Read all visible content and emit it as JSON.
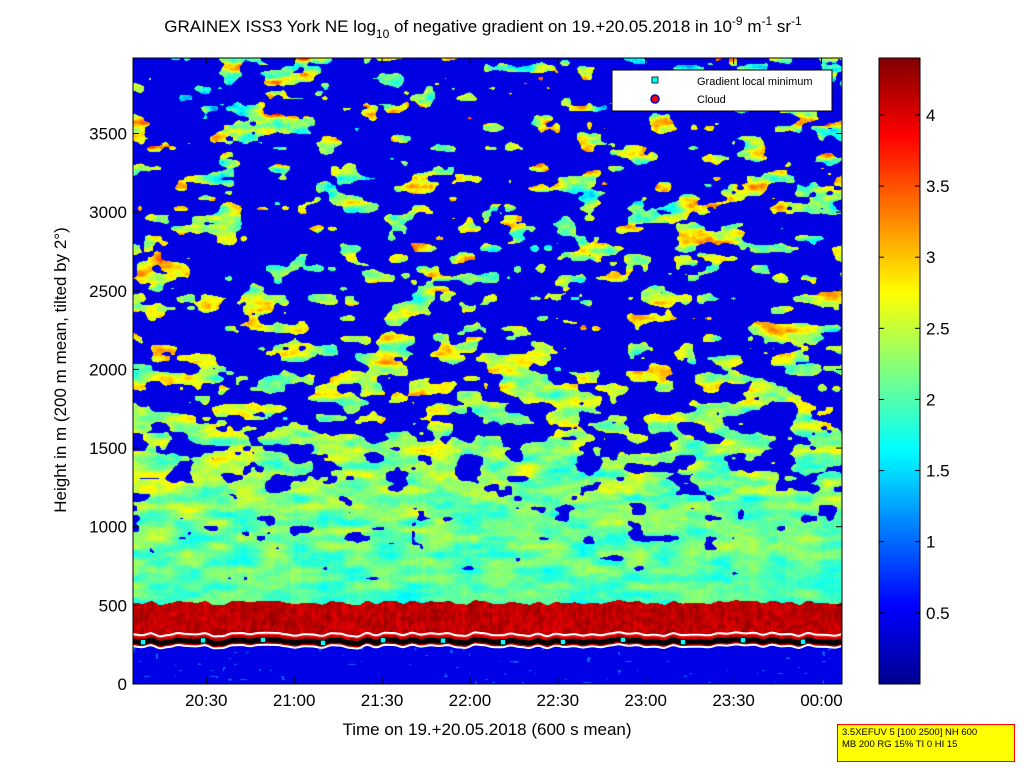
{
  "chart_data": {
    "type": "heatmap",
    "title": {
      "prefix": "GRAINEX ISS3 York NE log",
      "sub": "10",
      "middle": " of negative gradient on 19.+20.05.2018 in 10",
      "sup1": "-9",
      "mid2": " m",
      "sup2": "-1",
      "mid3": " sr",
      "sup3": "-1"
    },
    "xlabel": "Time on 19.+20.05.2018 (600 s mean)",
    "ylabel": "Height in m (200 m mean, tilted by 2°)",
    "x_ticks": [
      "20:30",
      "21:00",
      "21:30",
      "22:00",
      "22:30",
      "23:00",
      "23:30",
      "00:00"
    ],
    "x_range_minutes_after_20h": [
      5,
      247
    ],
    "y_ticks": [
      0,
      500,
      1000,
      1500,
      2000,
      2500,
      3000,
      3500
    ],
    "ylim": [
      0,
      3980
    ],
    "colorbar": {
      "ticks": [
        "0.5",
        "1",
        "1.5",
        "2",
        "2.5",
        "3",
        "3.5",
        "4"
      ],
      "range": [
        0,
        4.4
      ],
      "colormap": "jet"
    },
    "legend": {
      "placement": "top-right",
      "entries": [
        {
          "label": "Gradient local minimum",
          "marker": "square",
          "color": "#00ffff"
        },
        {
          "label": "Cloud",
          "marker": "circle",
          "color": "#ff0000"
        }
      ]
    },
    "layers": {
      "below_boundary_value": 0.1,
      "aerosol_layer_top_m": 520,
      "aerosol_layer_value": 4.2,
      "boundary_height_m": 290
    }
  },
  "info_box": {
    "line1": "3.5XEFUV 5 [100 2500] NH 600",
    "line2": "MB 200 RG 15% TI 0 HI 15"
  }
}
